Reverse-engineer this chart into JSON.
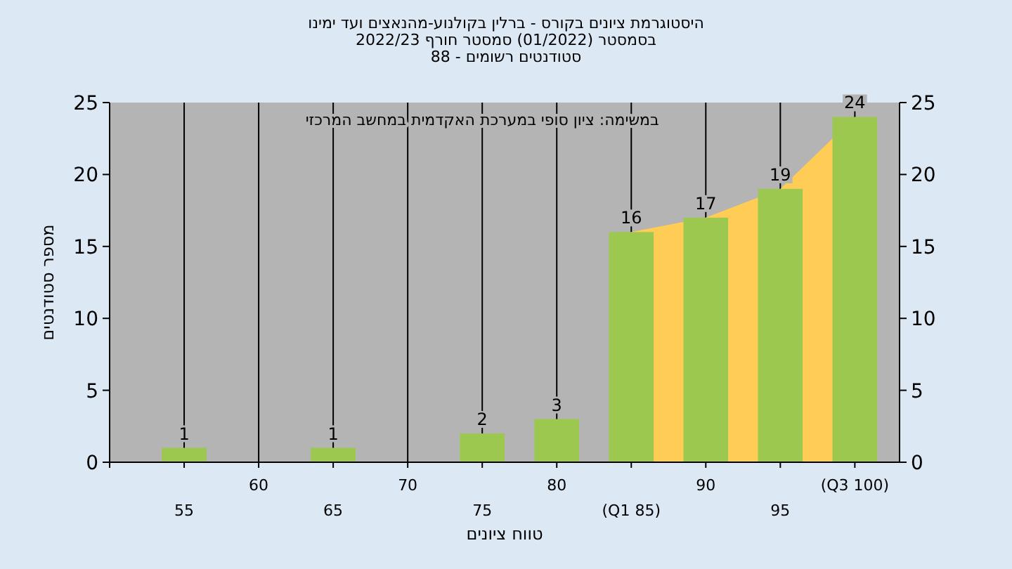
{
  "chart_data": {
    "type": "bar",
    "title": "היסטוגרמת ציונים בקורס - ברלין בקולנוע-מהנאצים ועד ימינו",
    "subtitle": "בסמסטר (01/2022) סמסטר חורף 2022/23",
    "annotations": [
      "סטודנטים רשומים - 88",
      "במשימה: ציון סופי במערכת האקדמית במחשב המרכזי"
    ],
    "xlabel": "טווח ציונים",
    "ylabel": "מספר סטודנטים",
    "categories": [
      "55",
      "60",
      "65",
      "70",
      "75",
      "80",
      "(Q1 85)",
      "90",
      "95",
      "(Q3 100)"
    ],
    "series": [
      {
        "type": "area",
        "color": "#ffcc55",
        "values": [
          null,
          null,
          null,
          null,
          null,
          null,
          16,
          17,
          19,
          24
        ]
      },
      {
        "color": "#9cc850",
        "values": [
          1,
          0,
          1,
          0,
          2,
          3,
          16,
          17,
          19,
          24
        ],
        "value_labels": [
          "1",
          null,
          "1",
          null,
          "2",
          "3",
          "16",
          "17",
          "19",
          "24"
        ]
      }
    ],
    "ylim": [
      0,
      25
    ],
    "yticks": [
      0,
      5,
      10,
      15,
      20,
      25
    ],
    "y2lim": [
      0,
      25
    ],
    "y2ticks": [
      0,
      5,
      10,
      15,
      20,
      25
    ],
    "grid": "x"
  }
}
